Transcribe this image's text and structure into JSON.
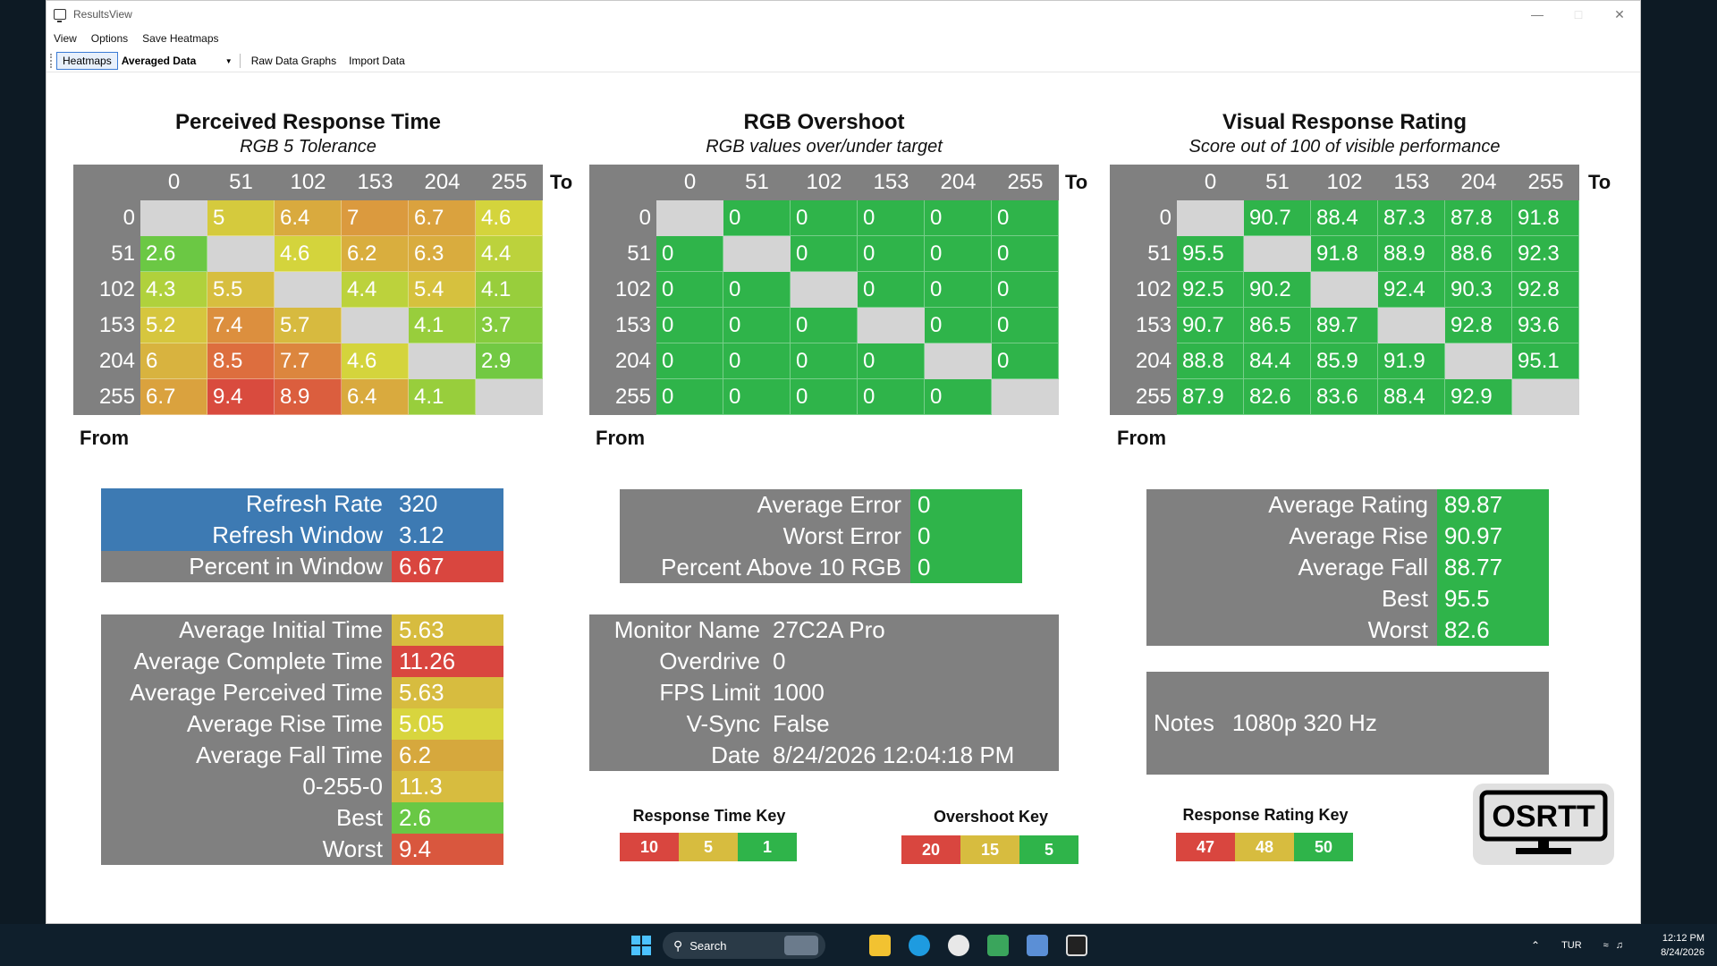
{
  "window": {
    "title": "ResultsView"
  },
  "menu": {
    "items": [
      "View",
      "Options",
      "Save Heatmaps"
    ]
  },
  "toolbar": {
    "tab_heatmaps": "Heatmaps",
    "select_value": "Averaged Data",
    "raw_data_graphs": "Raw Data Graphs",
    "import_data": "Import Data"
  },
  "heatmaps": {
    "axis_to": "To",
    "axis_from": "From",
    "levels": [
      "0",
      "51",
      "102",
      "153",
      "204",
      "255"
    ],
    "response": {
      "title": "Perceived Response Time",
      "subtitle": "RGB 5 Tolerance",
      "rows": [
        [
          "",
          "5",
          "6.4",
          "7",
          "6.7",
          "4.6"
        ],
        [
          "2.6",
          "",
          "4.6",
          "6.2",
          "6.3",
          "4.4"
        ],
        [
          "4.3",
          "5.5",
          "",
          "4.4",
          "5.4",
          "4.1"
        ],
        [
          "5.2",
          "7.4",
          "5.7",
          "",
          "4.1",
          "3.7"
        ],
        [
          "6",
          "8.5",
          "7.7",
          "4.6",
          "",
          "2.9"
        ],
        [
          "6.7",
          "9.4",
          "8.9",
          "6.4",
          "4.1",
          ""
        ]
      ]
    },
    "overshoot": {
      "title": "RGB Overshoot",
      "subtitle": "RGB values over/under target",
      "rows": [
        [
          "",
          "0",
          "0",
          "0",
          "0",
          "0"
        ],
        [
          "0",
          "",
          "0",
          "0",
          "0",
          "0"
        ],
        [
          "0",
          "0",
          "",
          "0",
          "0",
          "0"
        ],
        [
          "0",
          "0",
          "0",
          "",
          "0",
          "0"
        ],
        [
          "0",
          "0",
          "0",
          "0",
          "",
          "0"
        ],
        [
          "0",
          "0",
          "0",
          "0",
          "0",
          ""
        ]
      ]
    },
    "rating": {
      "title": "Visual Response Rating",
      "subtitle": "Score out of 100 of visible performance",
      "rows": [
        [
          "",
          "90.7",
          "88.4",
          "87.3",
          "87.8",
          "91.8"
        ],
        [
          "95.5",
          "",
          "91.8",
          "88.9",
          "88.6",
          "92.3"
        ],
        [
          "92.5",
          "90.2",
          "",
          "92.4",
          "90.3",
          "92.8"
        ],
        [
          "90.7",
          "86.5",
          "89.7",
          "",
          "92.8",
          "93.6"
        ],
        [
          "88.8",
          "84.4",
          "85.9",
          "91.9",
          "",
          "95.1"
        ],
        [
          "87.9",
          "82.6",
          "83.6",
          "88.4",
          "92.9",
          ""
        ]
      ]
    }
  },
  "refresh_stats": [
    {
      "label": "Refresh Rate",
      "value": "320",
      "color": "#3d7ab3"
    },
    {
      "label": "Refresh Window",
      "value": "3.12",
      "color": "#3d7ab3"
    },
    {
      "label": "Percent in Window",
      "value": "6.67",
      "color": "#d9463f"
    }
  ],
  "time_stats": [
    {
      "label": "Average Initial Time",
      "value": "5.63",
      "color": "#d7bc3f"
    },
    {
      "label": "Average Complete Time",
      "value": "11.26",
      "color": "#d9463f"
    },
    {
      "label": "Average Perceived Time",
      "value": "5.63",
      "color": "#d7bc3f"
    },
    {
      "label": "Average Rise Time",
      "value": "5.05",
      "color": "#d8d53e"
    },
    {
      "label": "Average Fall Time",
      "value": "6.2",
      "color": "#d6a83d"
    },
    {
      "label": "0-255-0",
      "value": "11.3",
      "color": "#d7bc3f"
    },
    {
      "label": "Best",
      "value": "2.6",
      "color": "#69c845"
    },
    {
      "label": "Worst",
      "value": "9.4",
      "color": "#d9573e"
    }
  ],
  "error_stats": [
    {
      "label": "Average Error",
      "value": "0"
    },
    {
      "label": "Worst Error",
      "value": "0"
    },
    {
      "label": "Percent Above 10 RGB",
      "value": "0"
    }
  ],
  "monitor_info": [
    {
      "label": "Monitor Name",
      "value": "27C2A Pro"
    },
    {
      "label": "Overdrive",
      "value": "0"
    },
    {
      "label": "FPS Limit",
      "value": "1000"
    },
    {
      "label": "V-Sync",
      "value": "False"
    },
    {
      "label": "Date",
      "value": "8/24/2026 12:04:18 PM"
    }
  ],
  "rating_stats": [
    {
      "label": "Average Rating",
      "value": "89.87"
    },
    {
      "label": "Average Rise",
      "value": "90.97"
    },
    {
      "label": "Average Fall",
      "value": "88.77"
    },
    {
      "label": "Best",
      "value": "95.5"
    },
    {
      "label": "Worst",
      "value": "82.6"
    }
  ],
  "notes": {
    "label": "Notes",
    "value": "1080p 320 Hz"
  },
  "keys": {
    "response": {
      "title": "Response Time Key",
      "values": [
        "10",
        "5",
        "1"
      ]
    },
    "overshoot": {
      "title": "Overshoot Key",
      "values": [
        "20",
        "15",
        "5"
      ]
    },
    "rating": {
      "title": "Response Rating Key",
      "values": [
        "47",
        "48",
        "50"
      ]
    }
  },
  "logo": {
    "text": "OSRTT"
  },
  "colors": {
    "green": "#2fb44a",
    "gray": "#808080",
    "blue": "#3d7ab3",
    "red": "#d9463f",
    "yellow": "#d7bc3f"
  },
  "taskbar": {
    "search_placeholder": "Search",
    "language": "TUR",
    "time": "12:12 PM",
    "date": "8/24/2026"
  }
}
